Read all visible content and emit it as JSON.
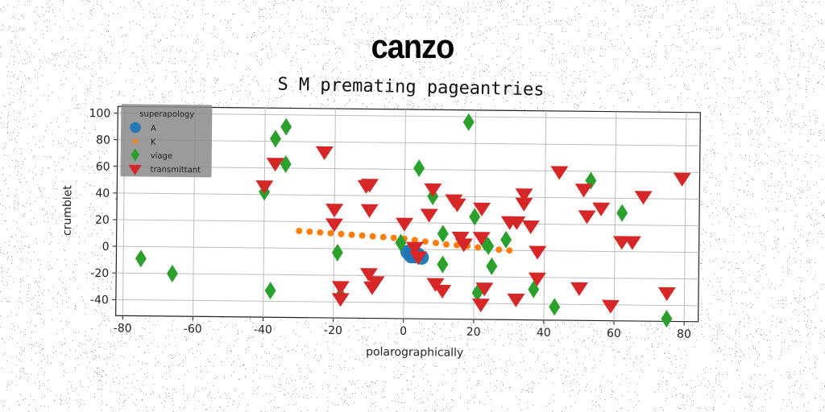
{
  "suptitle": "canzo",
  "chart_data": {
    "type": "scatter",
    "title": "S M premating pageantries",
    "xlabel": "polarographically",
    "ylabel": "crumblet",
    "xlim": [
      -82,
      84
    ],
    "ylim": [
      -52,
      105
    ],
    "xticks": [
      -80,
      -60,
      -40,
      -20,
      0,
      20,
      40,
      60,
      80
    ],
    "yticks": [
      -40,
      -20,
      0,
      20,
      40,
      60,
      80,
      100
    ],
    "grid": true,
    "legend": {
      "title": "superapology",
      "placement": "top-left"
    },
    "series": [
      {
        "name": "A",
        "marker": "circle",
        "color": "#1f77b4",
        "points": [
          [
            2,
            -3
          ],
          [
            3,
            -5
          ],
          [
            4,
            -4
          ],
          [
            1,
            -2
          ],
          [
            3,
            -3
          ],
          [
            5,
            -6
          ],
          [
            2,
            -5
          ]
        ]
      },
      {
        "name": "K",
        "marker": "point",
        "color": "#ff7f0e",
        "points": [
          [
            -30,
            13
          ],
          [
            -27,
            12.5
          ],
          [
            -24,
            12
          ],
          [
            -21,
            11.5
          ],
          [
            -18,
            11
          ],
          [
            -15,
            10.5
          ],
          [
            -12,
            10
          ],
          [
            -9,
            9.5
          ],
          [
            -6,
            9
          ],
          [
            -3,
            8.5
          ],
          [
            0,
            8
          ],
          [
            3,
            7
          ],
          [
            6,
            6
          ],
          [
            9,
            5
          ],
          [
            12,
            4
          ],
          [
            15,
            3.5
          ],
          [
            18,
            3
          ],
          [
            21,
            2
          ],
          [
            24,
            1
          ],
          [
            27,
            0.5
          ],
          [
            30,
            0
          ]
        ]
      },
      {
        "name": "viage",
        "marker": "diamond",
        "color": "#2ca02c",
        "points": [
          [
            -75,
            -9
          ],
          [
            -66,
            -20
          ],
          [
            -38,
            -32
          ],
          [
            -37,
            82
          ],
          [
            -34,
            91
          ],
          [
            -34,
            63
          ],
          [
            -40,
            42
          ],
          [
            -19,
            -3
          ],
          [
            -18,
            -35
          ],
          [
            -1,
            5
          ],
          [
            4,
            61
          ],
          [
            8,
            40
          ],
          [
            11,
            12
          ],
          [
            11,
            -11
          ],
          [
            18,
            96
          ],
          [
            20,
            25
          ],
          [
            21,
            -32
          ],
          [
            23,
            6
          ],
          [
            24,
            3
          ],
          [
            25,
            -12
          ],
          [
            29,
            8
          ],
          [
            37,
            -29
          ],
          [
            43,
            -42
          ],
          [
            53,
            53
          ],
          [
            62,
            29
          ],
          [
            75,
            -50
          ]
        ]
      },
      {
        "name": "transmittant",
        "marker": "triangle-down",
        "color": "#d62728",
        "points": [
          [
            -40,
            47
          ],
          [
            -37,
            64
          ],
          [
            -23,
            73
          ],
          [
            -20,
            19
          ],
          [
            -20,
            30
          ],
          [
            -18,
            -28
          ],
          [
            -18,
            -37
          ],
          [
            -11,
            48
          ],
          [
            -10,
            49
          ],
          [
            -10,
            30
          ],
          [
            -10,
            -18
          ],
          [
            -9,
            -28
          ],
          [
            -8,
            -24
          ],
          [
            0,
            20
          ],
          [
            3,
            2
          ],
          [
            4,
            -5
          ],
          [
            7,
            27
          ],
          [
            8,
            46
          ],
          [
            9,
            -25
          ],
          [
            11,
            -30
          ],
          [
            14,
            38
          ],
          [
            15,
            35
          ],
          [
            16,
            10
          ],
          [
            17,
            5
          ],
          [
            22,
            10
          ],
          [
            22,
            32
          ],
          [
            22,
            -40
          ],
          [
            23,
            -28
          ],
          [
            30,
            22
          ],
          [
            32,
            22
          ],
          [
            32,
            -36
          ],
          [
            34,
            36
          ],
          [
            34,
            43
          ],
          [
            36,
            19
          ],
          [
            38,
            -20
          ],
          [
            38,
            0
          ],
          [
            44,
            60
          ],
          [
            50,
            -27
          ],
          [
            51,
            47
          ],
          [
            52,
            27
          ],
          [
            56,
            33
          ],
          [
            59,
            -40
          ],
          [
            62,
            8
          ],
          [
            65,
            8
          ],
          [
            68,
            42
          ],
          [
            75,
            -30
          ],
          [
            79,
            56
          ]
        ]
      }
    ]
  }
}
